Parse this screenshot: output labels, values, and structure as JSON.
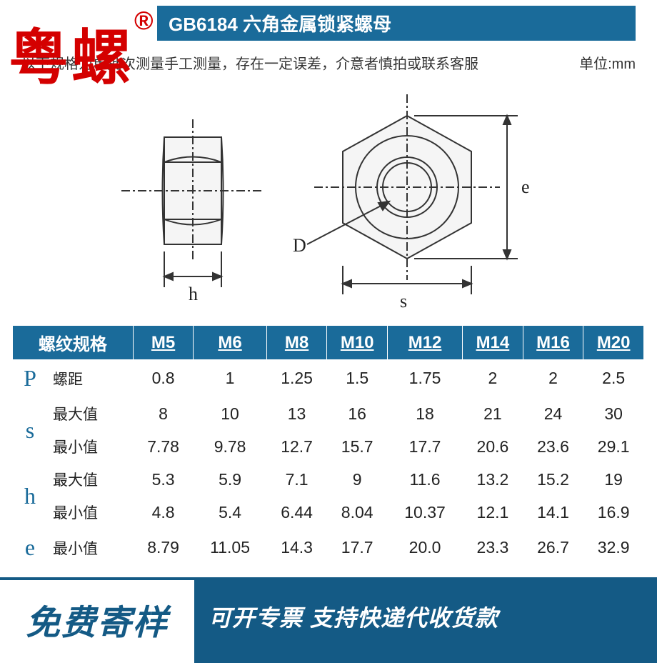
{
  "logo": {
    "text": "粤螺",
    "mark": "®"
  },
  "title": "GB6184 六角金属锁紧螺母",
  "subtitle": "以下规格为单批次测量手工测量，存在一定误差，介意者慎拍或联系客服",
  "unit_label": "单位:mm",
  "diagram": {
    "labels": {
      "h": "h",
      "D": "D",
      "s": "s",
      "e": "e"
    },
    "stroke_color": "#333333",
    "fill_color": "#f0f0f0"
  },
  "table": {
    "header_bg": "#1a6b9a",
    "header_color": "#ffffff",
    "spec_header": "螺纹规格",
    "columns": [
      "M5",
      "M6",
      "M8",
      "M10",
      "M12",
      "M14",
      "M16",
      "M20"
    ],
    "groups": [
      {
        "symbol": "P",
        "rows": [
          {
            "label": "螺距",
            "values": [
              "0.8",
              "1",
              "1.25",
              "1.5",
              "1.75",
              "2",
              "2",
              "2.5"
            ]
          }
        ]
      },
      {
        "symbol": "s",
        "rows": [
          {
            "label": "最大值",
            "values": [
              "8",
              "10",
              "13",
              "16",
              "18",
              "21",
              "24",
              "30"
            ]
          },
          {
            "label": "最小值",
            "values": [
              "7.78",
              "9.78",
              "12.7",
              "15.7",
              "17.7",
              "20.6",
              "23.6",
              "29.1"
            ]
          }
        ]
      },
      {
        "symbol": "h",
        "rows": [
          {
            "label": "最大值",
            "values": [
              "5.3",
              "5.9",
              "7.1",
              "9",
              "11.6",
              "13.2",
              "15.2",
              "19"
            ]
          },
          {
            "label": "最小值",
            "values": [
              "4.8",
              "5.4",
              "6.44",
              "8.04",
              "10.37",
              "12.1",
              "14.1",
              "16.9"
            ]
          }
        ]
      },
      {
        "symbol": "e",
        "rows": [
          {
            "label": "最小值",
            "values": [
              "8.79",
              "11.05",
              "14.3",
              "17.7",
              "20.0",
              "23.3",
              "26.7",
              "32.9"
            ]
          }
        ]
      }
    ]
  },
  "footer": {
    "left": "免费寄样",
    "right": "可开专票 支持快递代收货款",
    "left_color": "#145a85",
    "right_bg": "#145a85"
  }
}
